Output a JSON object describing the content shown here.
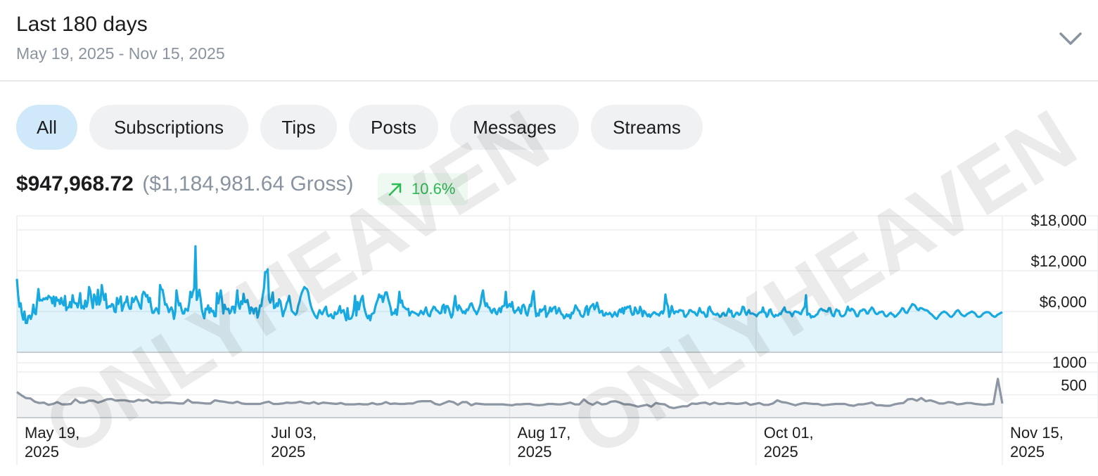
{
  "header": {
    "title": "Last 180 days",
    "date_range": "May 19, 2025 - Nov 15, 2025"
  },
  "tabs": [
    {
      "label": "All",
      "active": true
    },
    {
      "label": "Subscriptions",
      "active": false
    },
    {
      "label": "Tips",
      "active": false
    },
    {
      "label": "Posts",
      "active": false
    },
    {
      "label": "Messages",
      "active": false
    },
    {
      "label": "Streams",
      "active": false
    }
  ],
  "summary": {
    "net": "$947,968.72",
    "gross": "($1,184,981.64 Gross)",
    "change": "10.6%",
    "change_icon": "arrow-up-right-icon"
  },
  "watermark": {
    "text": "ONLYHEAVEN",
    "symbol": "©"
  },
  "colors": {
    "accent": "#19a9e1",
    "secondary_line": "#8d97a3",
    "positive": "#2dbb55"
  },
  "chart_data": [
    {
      "type": "area",
      "ylabel_ticks": [
        "$18,000",
        "$12,000",
        "$6,000"
      ],
      "y_ticks": [
        6000,
        12000,
        18000
      ],
      "ylim": [
        0,
        18000
      ],
      "x_ticks": [
        {
          "line1": "May 19,",
          "line2": "2025",
          "date": "2025-05-19"
        },
        {
          "line1": "Jul 03,",
          "line2": "2025",
          "date": "2025-07-03"
        },
        {
          "line1": "Aug 17,",
          "line2": "2025",
          "date": "2025-08-17"
        },
        {
          "line1": "Oct 01,",
          "line2": "2025",
          "date": "2025-10-01"
        },
        {
          "line1": "Nov 15,",
          "line2": "2025",
          "date": "2025-11-15"
        }
      ],
      "x_start": "2025-05-19",
      "x_end": "2025-11-15",
      "grid": true,
      "series": [
        {
          "values": [
            10800,
            8400,
            6700,
            7200,
            5600,
            4800,
            6000,
            4300,
            4300,
            5300,
            5400,
            4900,
            5500,
            7000,
            5800,
            5600,
            7500,
            9300,
            7600,
            7700,
            7600,
            7900,
            7800,
            8000,
            7800,
            8300,
            8100,
            8000,
            7200,
            8200,
            6800,
            8100,
            7600,
            7700,
            7100,
            8000,
            7200,
            6900,
            8300,
            6200,
            6600,
            6600,
            7400,
            6600,
            8400,
            7400,
            7200,
            7200,
            6600,
            7400,
            8700,
            6500,
            6800,
            6400,
            7600,
            6700,
            7400,
            9600,
            9000,
            7600,
            6500,
            8500,
            8000,
            7000,
            9200,
            7000,
            7600,
            9900,
            8600,
            7700,
            8600,
            6500,
            6600,
            6800,
            6700,
            7100,
            7000,
            6000,
            5900,
            8000,
            7100,
            7600,
            8200,
            6100,
            6700,
            7300,
            7400,
            8200,
            6900,
            6400,
            6400,
            8000,
            7400,
            7800,
            8200,
            7700,
            7300,
            6700,
            6400,
            8400,
            8900,
            8700,
            8200,
            8400,
            7400,
            8000,
            6700,
            5800,
            5800,
            6200,
            6500,
            6200,
            5700,
            9900,
            9300,
            9200,
            8200,
            7000,
            7100,
            6600,
            5900,
            6300,
            6600,
            6100,
            4900,
            5900,
            9100,
            7800,
            6900,
            7200,
            6300,
            5700,
            5700,
            6400,
            6300,
            6100,
            7200,
            8900,
            8100,
            8900,
            9400,
            15600,
            7700,
            8300,
            9200,
            8000,
            6300,
            5500,
            5000,
            6400,
            6300,
            6900,
            5800,
            6500,
            6000,
            6100,
            5300,
            5300,
            8700,
            7200,
            8200,
            9100,
            7600,
            5700,
            7000,
            6400,
            6300,
            6400,
            5700,
            6000,
            6700,
            6700,
            5800,
            7200,
            9100,
            7000,
            6400,
            7500,
            7100,
            8600,
            7400,
            7400,
            7700,
            6800,
            5700,
            6600,
            6400,
            5700,
            6400,
            6500,
            5100,
            5800,
            6900,
            6800,
            8200,
            9400,
            11800,
            11800,
            12200,
            7800,
            7300,
            7900,
            8800,
            6500,
            6600,
            7200,
            6800,
            7800,
            7500,
            6400,
            5300,
            6000,
            6400,
            7200,
            7600,
            8300,
            7100,
            6100,
            5900,
            5700,
            5500,
            5800,
            6800,
            7400,
            8200,
            8800,
            9200,
            9600,
            9400,
            9300,
            8800,
            7700,
            6900,
            6300,
            5900,
            5500,
            5200,
            5000,
            5700,
            6200,
            5800,
            5600,
            6000,
            6400,
            6700,
            5600,
            5300,
            5400,
            5600,
            5100,
            5000,
            5900,
            5600,
            5700,
            6200,
            6800,
            5800,
            6100,
            6200,
            5400,
            4700,
            6500,
            4900,
            4900,
            5000,
            5400,
            6300,
            8300,
            5400,
            7400,
            6300,
            7300,
            7900,
            8300,
            6800,
            6000,
            5400,
            5000,
            5400,
            4700,
            5600,
            5700,
            5800,
            6700,
            7300,
            7800,
            8500,
            8100,
            8300,
            7400,
            8200,
            8800,
            8800,
            8000,
            7300,
            6600,
            5500,
            5800,
            5700,
            6300,
            5500,
            7000,
            8900,
            7300,
            7600,
            6700,
            6600,
            6400,
            6300,
            6400,
            5400,
            5800,
            6000,
            5900,
            5800,
            5700,
            5600,
            5400,
            5700,
            6100,
            5800,
            5600,
            6100,
            6600,
            5800,
            5400,
            5300,
            6000,
            6300,
            6700,
            6600,
            6200,
            6100,
            5900,
            5700,
            5800,
            6800,
            7000,
            5800,
            6800,
            6800,
            6400,
            5700,
            5100,
            5500,
            7000,
            8300,
            6700,
            6200,
            6900,
            6600,
            6200,
            5800,
            6000,
            5700,
            6300,
            6200,
            6600,
            7100,
            7200,
            6700,
            6200,
            6000,
            5600,
            6000,
            6500,
            7100,
            8400,
            9100,
            7600,
            6800,
            7200,
            6600,
            6600,
            6100,
            5800,
            6300,
            6400,
            5800,
            5600,
            6100,
            6500,
            5900,
            6700,
            6800,
            6900,
            8900,
            6600,
            6800,
            7100,
            6700,
            7400,
            6200,
            5800,
            6100,
            6200,
            6600,
            6100,
            5700,
            6800,
            7000,
            6600,
            5700,
            5400,
            6200,
            7000,
            6800,
            8300,
            9000,
            6700,
            5300,
            5700,
            5400,
            6300,
            6000,
            6300,
            6300,
            6800,
            5200,
            5600,
            5900,
            6600,
            6000,
            6400,
            6600,
            6700,
            5700,
            6000,
            6500,
            6000,
            5600,
            5500,
            5000,
            5200,
            5600,
            5300,
            5500,
            5000,
            5800,
            5700,
            6200,
            6900,
            6600,
            6200,
            6100,
            5500,
            5300,
            5200,
            5600,
            6500,
            6800,
            5500,
            6300,
            6700,
            6900,
            7100,
            6300,
            6700,
            7300,
            6600,
            5800,
            6000,
            6100,
            5400,
            5400,
            5800,
            5600,
            5600,
            5800,
            5600,
            5200,
            5500,
            5900,
            5500,
            5300,
            6000,
            6300,
            5900,
            6500,
            5700,
            6600,
            6400,
            6700,
            6600,
            6800,
            5900,
            5500,
            5600,
            6600,
            6200,
            5700,
            5800,
            6700,
            6200,
            5300,
            6100,
            5900,
            5600,
            5300,
            5600,
            5200,
            5500,
            5700,
            5900,
            5800,
            5600,
            5600,
            5400,
            5800,
            6000,
            5700,
            6300,
            8500,
            7300,
            6800,
            5200,
            5800,
            6800,
            6100,
            5700,
            6000,
            6000,
            5900,
            6200,
            6200,
            6100,
            6100,
            5300,
            5200,
            5500,
            5700,
            6200,
            6200,
            6000,
            5900,
            5900,
            5600,
            5400,
            5900,
            6500,
            6000,
            5800,
            5900,
            5600,
            5200,
            5300,
            6500,
            6700,
            6100,
            5900,
            5600,
            5600,
            5500,
            5700,
            5500,
            5200,
            5300,
            5700,
            5800,
            5400,
            5400,
            5900,
            6400,
            5900,
            6100,
            5300,
            5200,
            5500,
            5800,
            5800,
            5500,
            5600,
            6000,
            6700,
            6600,
            5900,
            5500,
            5900,
            6200,
            5700,
            5700,
            5700,
            5600,
            5500,
            5300,
            5600,
            5800,
            5900,
            5900,
            6600,
            5900,
            5800,
            5200,
            5500,
            6200,
            6300,
            5700,
            5400,
            5200,
            5500,
            5400,
            5400,
            5700,
            5600,
            6000,
            6300,
            6600,
            6000,
            5900,
            5900,
            5900,
            5700,
            5300,
            5700,
            6000,
            6000,
            5900,
            5900,
            5700,
            5600,
            6100,
            6400,
            6700,
            8400,
            5500,
            5700,
            5600,
            5100,
            5300,
            5200,
            5300,
            5500,
            5600,
            6000,
            6300,
            6400,
            6200,
            6200,
            6100,
            6000,
            6000,
            6500,
            6500,
            5800,
            5400,
            5300,
            5900,
            6300,
            6100,
            6100,
            5500,
            5300,
            5300,
            5400,
            5600,
            6100,
            6700,
            6200,
            6100,
            6400,
            6300,
            6100,
            5700,
            5300,
            5300,
            5800,
            6100,
            6100,
            6300,
            6300,
            6100,
            5700,
            5700,
            6100,
            6300,
            6600,
            6400,
            6000,
            5700,
            5600,
            5700,
            5900,
            5900,
            6000,
            5900,
            5500,
            5300,
            5300,
            5500,
            5700,
            5800,
            5600,
            5500,
            5200,
            5300,
            5500,
            5700,
            5900,
            6200,
            6500,
            6400,
            6000,
            5800,
            5800,
            6200,
            6500,
            6800,
            7100,
            7000,
            6900,
            6600,
            6300,
            6200,
            6500,
            6500,
            6400,
            6300,
            6200,
            6200,
            6100,
            5900,
            5700,
            5600,
            5400,
            5200,
            5000,
            4900,
            5100,
            5400,
            5600,
            5800,
            5900,
            6000,
            5900,
            5800,
            5600,
            5400,
            5200,
            5200,
            5400,
            5600,
            5900,
            6100,
            6200,
            6000,
            5700,
            5500,
            5400,
            5300,
            5400,
            5600,
            5700,
            5800,
            5900,
            6000,
            5900,
            5800,
            5600,
            5300,
            5200,
            5200,
            5300,
            5500,
            5700,
            5800,
            5900,
            5900,
            5900,
            5800,
            5600,
            5400,
            5300,
            5200,
            5300,
            5500,
            5600,
            5700,
            5800,
            5900
          ]
        }
      ]
    },
    {
      "type": "area",
      "ylabel_ticks": [
        "1000",
        "500"
      ],
      "y_ticks": [
        500,
        1000
      ],
      "ylim": [
        0,
        1200
      ],
      "x_start": "2025-05-19",
      "x_end": "2025-11-15",
      "grid": true,
      "series": [
        {
          "values": [
            560,
            490,
            430,
            420,
            350,
            320,
            330,
            280,
            300,
            340,
            290,
            290,
            300,
            400,
            330,
            330,
            370,
            370,
            330,
            360,
            400,
            410,
            370,
            380,
            380,
            360,
            350,
            390,
            370,
            390,
            330,
            340,
            320,
            330,
            330,
            320,
            310,
            310,
            390,
            330,
            330,
            320,
            310,
            310,
            380,
            360,
            350,
            330,
            320,
            350,
            310,
            300,
            300,
            300,
            300,
            330,
            350,
            300,
            300,
            310,
            330,
            320,
            330,
            350,
            320,
            310,
            340,
            300,
            330,
            320,
            310,
            300,
            320,
            290,
            290,
            290,
            300,
            290,
            290,
            320,
            290,
            300,
            340,
            300,
            310,
            300,
            300,
            310,
            310,
            350,
            360,
            360,
            360,
            300,
            280,
            320,
            360,
            340,
            280,
            340,
            340,
            270,
            310,
            300,
            290,
            290,
            290,
            290,
            290,
            280,
            270,
            290,
            290,
            300,
            300,
            280,
            270,
            280,
            300,
            300,
            290,
            290,
            310,
            330,
            290,
            290,
            400,
            320,
            280,
            340,
            290,
            300,
            350,
            360,
            330,
            290,
            290,
            270,
            240,
            260,
            280,
            240,
            320,
            300,
            290,
            230,
            210,
            230,
            250,
            250,
            310,
            300,
            320,
            330,
            290,
            330,
            300,
            300,
            320,
            310,
            300,
            310,
            330,
            280,
            300,
            320,
            280,
            280,
            310,
            380,
            340,
            330,
            300,
            270,
            300,
            320,
            310,
            300,
            300,
            270,
            280,
            290,
            300,
            300,
            300,
            270,
            260,
            290,
            290,
            310,
            330,
            270,
            270,
            260,
            260,
            290,
            310,
            320,
            400,
            410,
            370,
            430,
            360,
            380,
            350,
            310,
            310,
            340,
            330,
            290,
            300,
            320,
            320,
            300,
            290,
            280,
            290,
            300,
            850,
            310
          ]
        }
      ]
    }
  ]
}
